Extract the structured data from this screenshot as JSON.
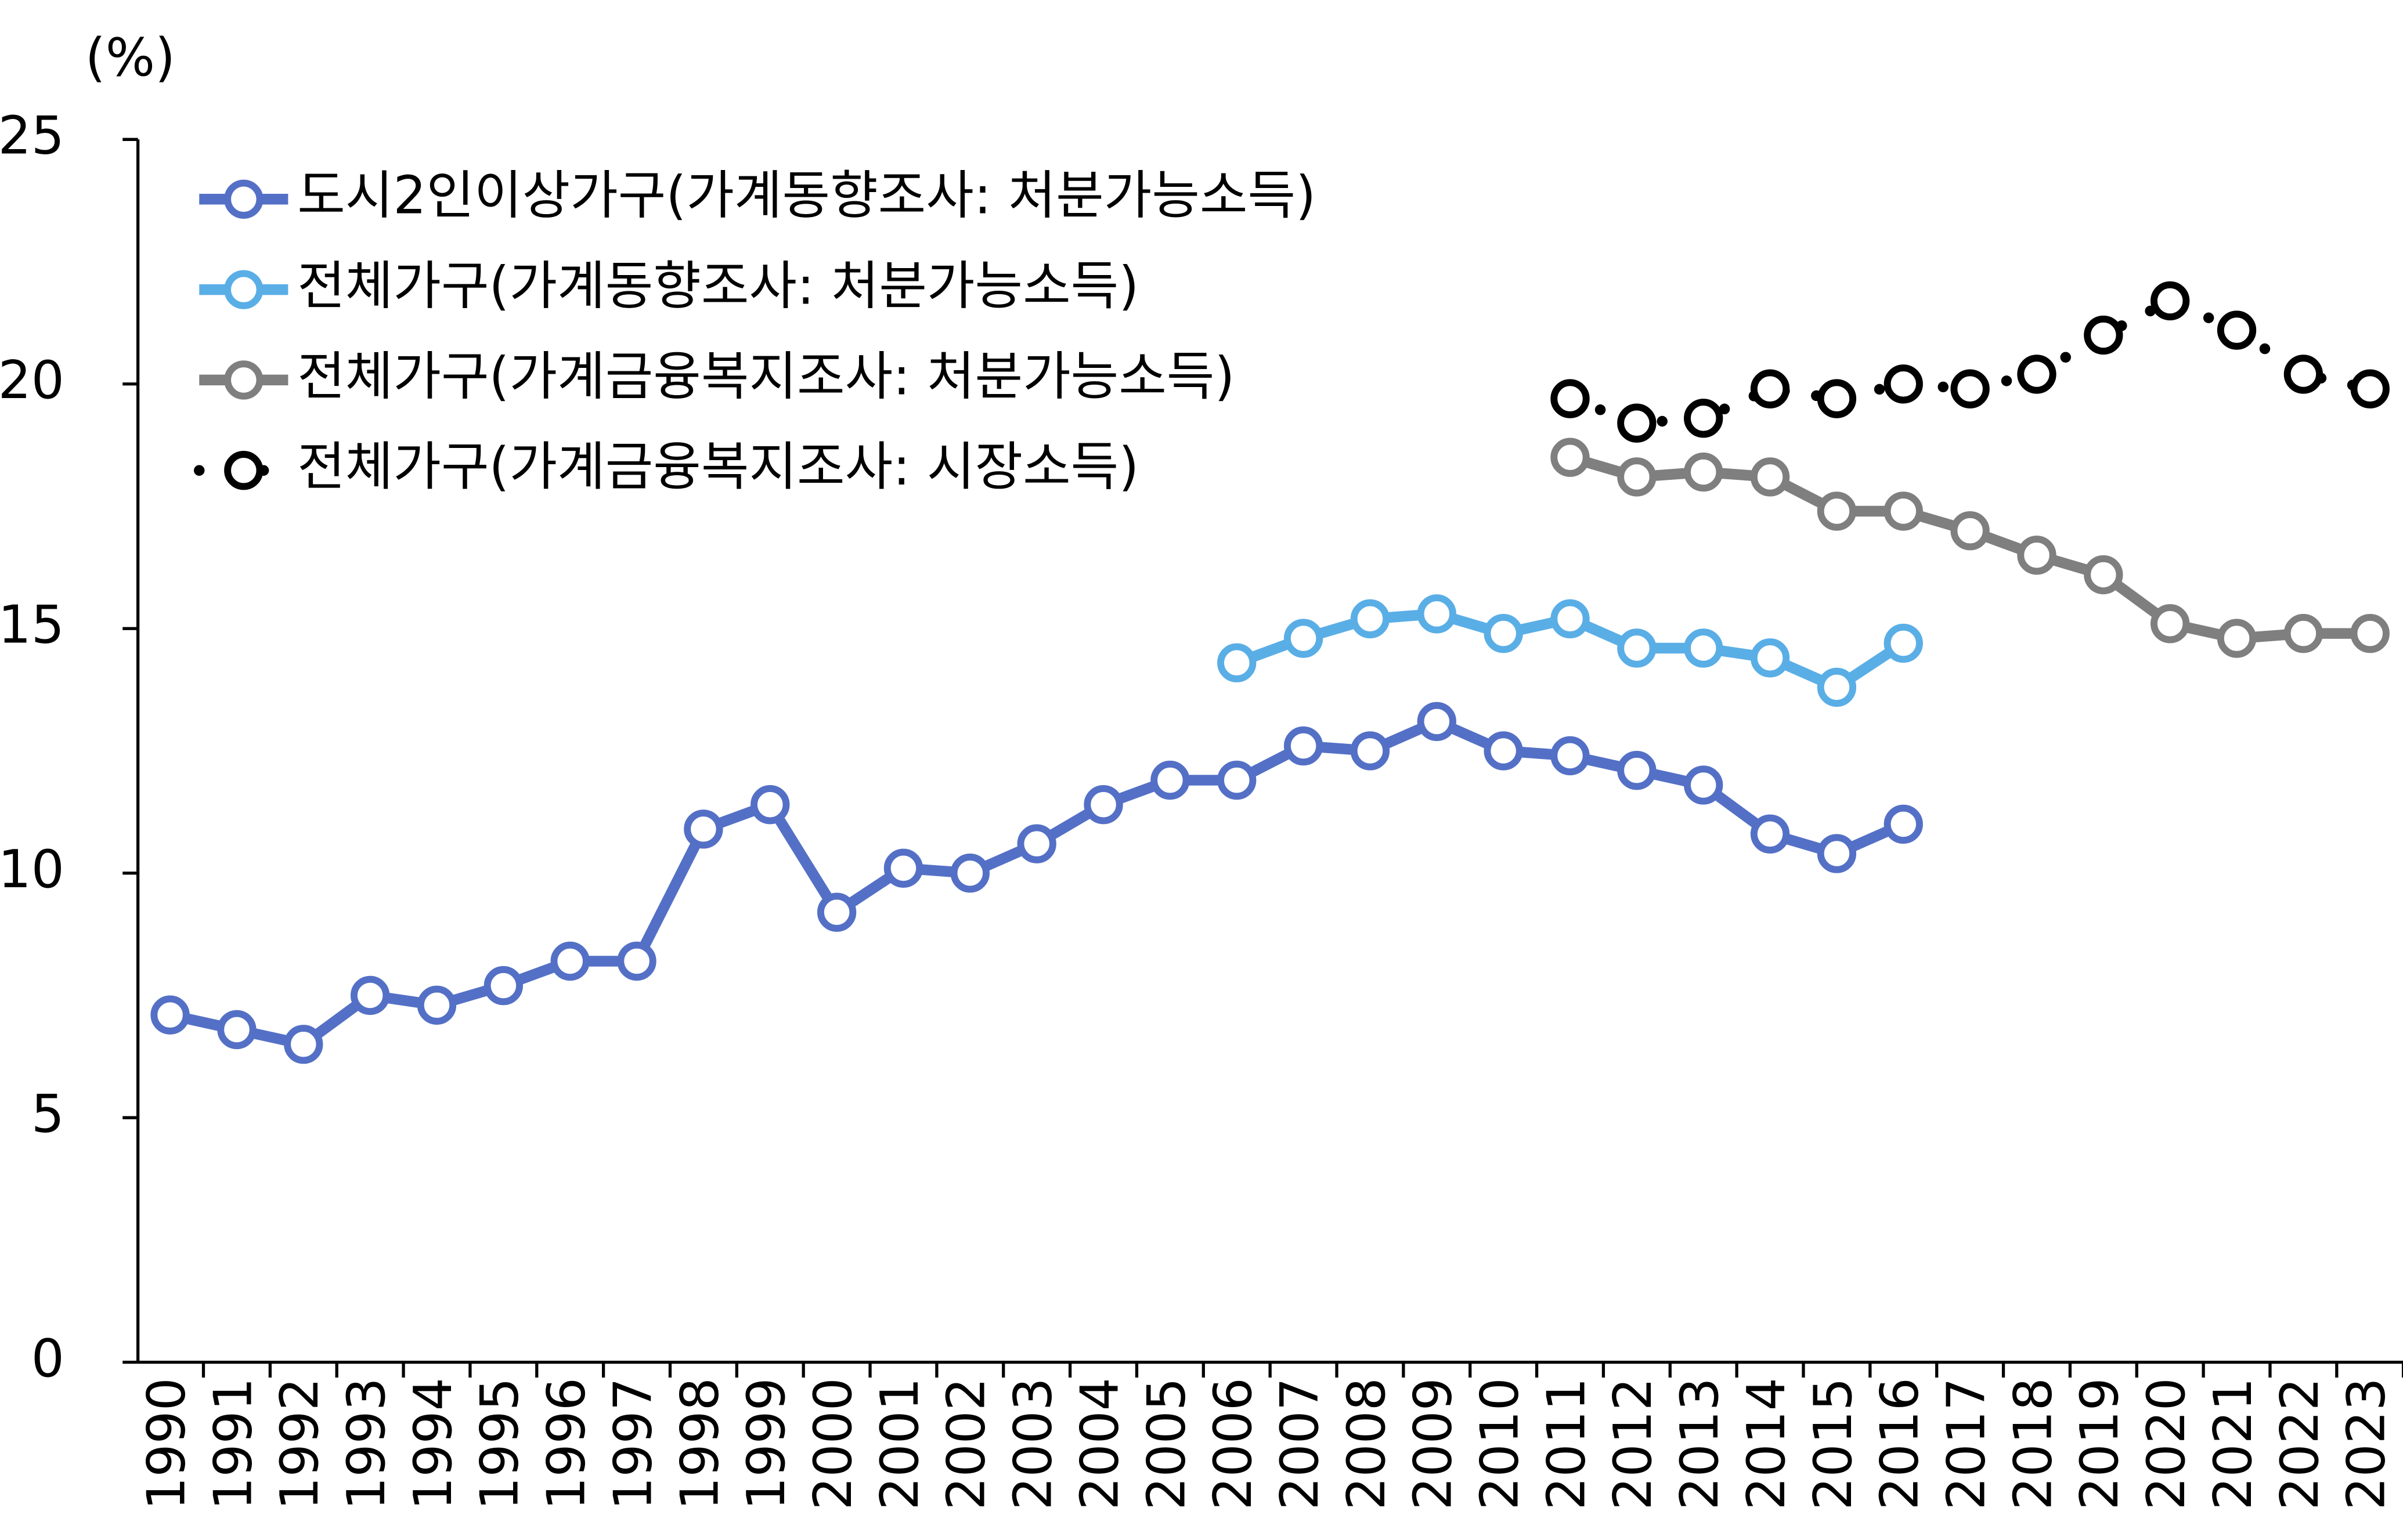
{
  "chart_data": {
    "type": "line",
    "y_unit_label": "(%)",
    "categories": [
      "1990",
      "1991",
      "1992",
      "1993",
      "1994",
      "1995",
      "1996",
      "1997",
      "1998",
      "1999",
      "2000",
      "2001",
      "2002",
      "2003",
      "2004",
      "2005",
      "2006",
      "2007",
      "2008",
      "2009",
      "2010",
      "2011",
      "2012",
      "2013",
      "2014",
      "2015",
      "2016",
      "2017",
      "2018",
      "2019",
      "2020",
      "2021",
      "2022",
      "2023"
    ],
    "ylim": [
      0,
      25
    ],
    "yticks": [
      0,
      5,
      10,
      15,
      20,
      25
    ],
    "series": [
      {
        "name": "도시2인이상가구(가계동향조사: 처분가능소득)",
        "color": "#5470c6",
        "line_style": "solid",
        "values": [
          7.1,
          6.8,
          6.5,
          7.5,
          7.3,
          7.7,
          8.2,
          8.2,
          10.9,
          11.4,
          9.2,
          10.1,
          10.0,
          10.6,
          11.4,
          11.9,
          11.9,
          12.6,
          12.5,
          13.1,
          12.5,
          12.4,
          12.1,
          11.8,
          10.8,
          10.4,
          11.0,
          null,
          null,
          null,
          null,
          null,
          null,
          null
        ]
      },
      {
        "name": "전체가구(가계동향조사: 처분가능소득)",
        "color": "#5aaee6",
        "line_style": "solid",
        "values": [
          null,
          null,
          null,
          null,
          null,
          null,
          null,
          null,
          null,
          null,
          null,
          null,
          null,
          null,
          null,
          null,
          14.3,
          14.8,
          15.2,
          15.3,
          14.9,
          15.2,
          14.6,
          14.6,
          14.4,
          13.8,
          14.7,
          null,
          null,
          null,
          null,
          null,
          null,
          null
        ]
      },
      {
        "name": "전체가구(가계금융복지조사: 처분가능소득)",
        "color": "#7f7f7f",
        "line_style": "solid",
        "values": [
          null,
          null,
          null,
          null,
          null,
          null,
          null,
          null,
          null,
          null,
          null,
          null,
          null,
          null,
          null,
          null,
          null,
          null,
          null,
          null,
          null,
          18.5,
          18.1,
          18.2,
          18.1,
          17.4,
          17.4,
          17.0,
          16.5,
          16.1,
          15.1,
          14.8,
          14.9,
          14.9
        ]
      },
      {
        "name": "전체가구(가계금융복지조사: 시장소득)",
        "color": "#000000",
        "line_style": "dotted",
        "values": [
          null,
          null,
          null,
          null,
          null,
          null,
          null,
          null,
          null,
          null,
          null,
          null,
          null,
          null,
          null,
          null,
          null,
          null,
          null,
          null,
          null,
          19.7,
          19.2,
          19.3,
          19.9,
          19.7,
          20.0,
          19.9,
          20.2,
          21.0,
          21.7,
          21.1,
          20.2,
          19.9
        ]
      }
    ]
  }
}
